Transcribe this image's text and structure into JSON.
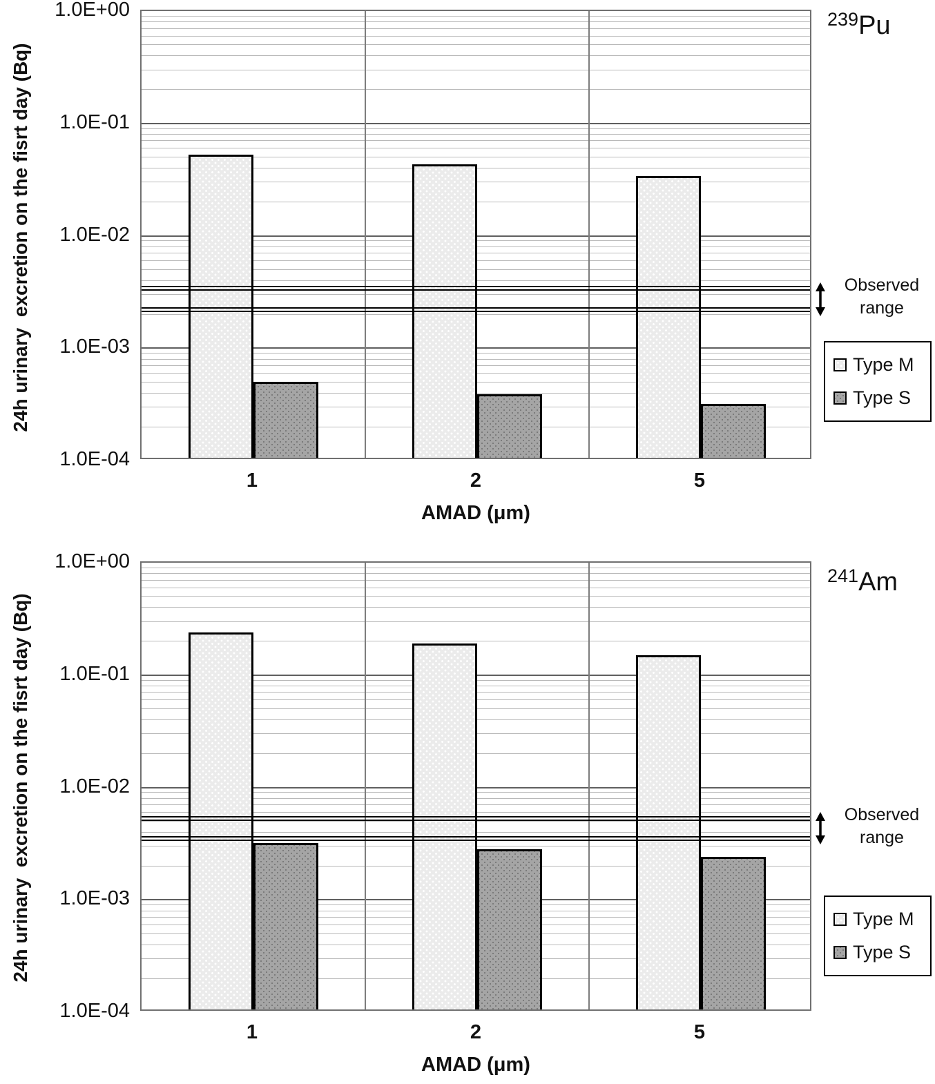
{
  "colors": {
    "bar_type_m_fill": "#ebebeb",
    "bar_type_s_fill": "#a5a5a5",
    "bar_border": "#000000",
    "grid_major": "#5f5f5f",
    "grid_minor": "#b9b9b9",
    "plot_frame": "#707070",
    "observed_range_line": "#000000",
    "text": "#111111"
  },
  "observed_annotation": {
    "line1": "Observed",
    "line2": "range",
    "arrow_icon": "double-headed-vertical-arrow"
  },
  "chart_data": [
    {
      "type": "bar",
      "title": "239Pu",
      "title_mass": "239",
      "title_symbol": "Pu",
      "xlabel": "AMAD (μm)",
      "ylabel": "24h urinary  excretion on the fisrt day (Bq)",
      "categories": [
        "1",
        "2",
        "5"
      ],
      "series": [
        {
          "name": "Type M",
          "values": [
            0.053,
            0.043,
            0.034
          ]
        },
        {
          "name": "Type S",
          "values": [
            0.0005,
            0.00039,
            0.00032
          ]
        }
      ],
      "observed_range": [
        0.0034,
        0.0022
      ],
      "ylim": [
        0.0001,
        1.0
      ],
      "yscale": "log",
      "yticks": [
        "1.0E+00",
        "1.0E-01",
        "1.0E-02",
        "1.0E-03",
        "1.0E-04"
      ],
      "grid": "log major+minor horizontal, category-boundary vertical",
      "legend_position": "right"
    },
    {
      "type": "bar",
      "title": "241Am",
      "title_mass": "241",
      "title_symbol": "Am",
      "xlabel": "AMAD (μm)",
      "ylabel": "24h urinary  excretion on the fisrt day (Bq)",
      "categories": [
        "1",
        "2",
        "5"
      ],
      "series": [
        {
          "name": "Type M",
          "values": [
            0.24,
            0.19,
            0.15
          ]
        },
        {
          "name": "Type S",
          "values": [
            0.0032,
            0.0028,
            0.0024
          ]
        }
      ],
      "observed_range": [
        0.0053,
        0.0035
      ],
      "ylim": [
        0.0001,
        1.0
      ],
      "yscale": "log",
      "yticks": [
        "1.0E+00",
        "1.0E-01",
        "1.0E-02",
        "1.0E-03",
        "1.0E-04"
      ],
      "grid": "log major+minor horizontal, category-boundary vertical",
      "legend_position": "right"
    }
  ]
}
